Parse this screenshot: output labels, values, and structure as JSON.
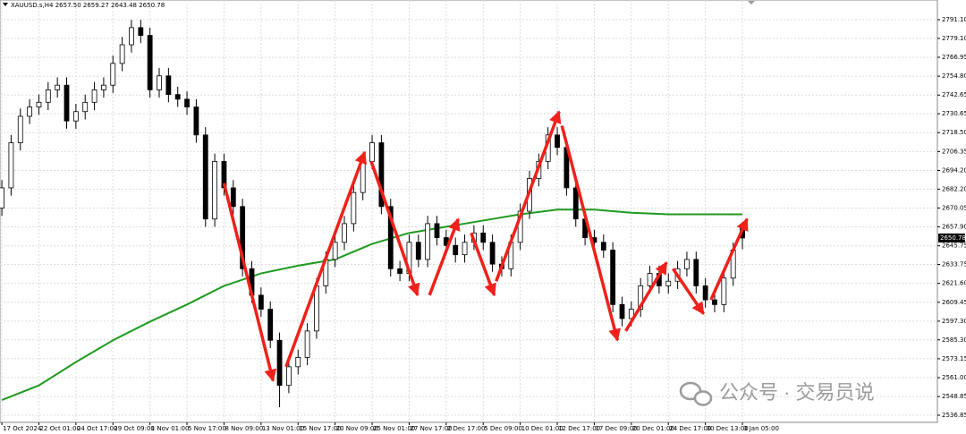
{
  "chart_data": {
    "type": "candlestick",
    "header": "XAUUSD.s,H4 2657.50 2659.27 2643.48 2650.78",
    "watermark": "公众号 · 交易员说",
    "candles": [
      [
        2670,
        2688,
        2665,
        2683
      ],
      [
        2683,
        2717,
        2678,
        2712
      ],
      [
        2712,
        2734,
        2707,
        2729
      ],
      [
        2729,
        2740,
        2724,
        2735
      ],
      [
        2735,
        2743,
        2730,
        2738
      ],
      [
        2738,
        2751,
        2733,
        2746
      ],
      [
        2746,
        2754,
        2741,
        2749
      ],
      [
        2749,
        2754,
        2721,
        2726
      ],
      [
        2726,
        2737,
        2721,
        2732
      ],
      [
        2732,
        2743,
        2727,
        2738
      ],
      [
        2738,
        2751,
        2733,
        2746
      ],
      [
        2746,
        2754,
        2741,
        2749
      ],
      [
        2749,
        2768,
        2744,
        2763
      ],
      [
        2763,
        2780,
        2758,
        2775
      ],
      [
        2775,
        2791,
        2770,
        2786
      ],
      [
        2786,
        2791,
        2776,
        2781
      ],
      [
        2781,
        2786,
        2741,
        2746
      ],
      [
        2746,
        2760,
        2741,
        2755
      ],
      [
        2755,
        2760,
        2738,
        2743
      ],
      [
        2743,
        2748,
        2735,
        2740
      ],
      [
        2740,
        2745,
        2730,
        2735
      ],
      [
        2735,
        2740,
        2712,
        2717
      ],
      [
        2717,
        2722,
        2658,
        2663
      ],
      [
        2663,
        2705,
        2658,
        2700
      ],
      [
        2700,
        2705,
        2678,
        2683
      ],
      [
        2683,
        2688,
        2666,
        2671
      ],
      [
        2671,
        2676,
        2626,
        2631
      ],
      [
        2631,
        2636,
        2609,
        2614
      ],
      [
        2614,
        2619,
        2600,
        2605
      ],
      [
        2605,
        2610,
        2580,
        2585
      ],
      [
        2585,
        2590,
        2542,
        2556
      ],
      [
        2556,
        2573,
        2551,
        2568
      ],
      [
        2568,
        2579,
        2563,
        2574
      ],
      [
        2574,
        2596,
        2569,
        2591
      ],
      [
        2591,
        2625,
        2586,
        2620
      ],
      [
        2620,
        2642,
        2615,
        2637
      ],
      [
        2637,
        2653,
        2632,
        2648
      ],
      [
        2648,
        2665,
        2643,
        2660
      ],
      [
        2660,
        2685,
        2655,
        2680
      ],
      [
        2680,
        2705,
        2675,
        2700
      ],
      [
        2700,
        2717,
        2695,
        2712
      ],
      [
        2712,
        2717,
        2666,
        2671
      ],
      [
        2671,
        2676,
        2626,
        2631
      ],
      [
        2631,
        2636,
        2623,
        2628
      ],
      [
        2628,
        2653,
        2623,
        2648
      ],
      [
        2648,
        2653,
        2632,
        2637
      ],
      [
        2637,
        2665,
        2632,
        2660
      ],
      [
        2660,
        2665,
        2646,
        2651
      ],
      [
        2651,
        2656,
        2641,
        2646
      ],
      [
        2646,
        2651,
        2635,
        2640
      ],
      [
        2640,
        2653,
        2635,
        2648
      ],
      [
        2648,
        2659,
        2643,
        2654
      ],
      [
        2654,
        2659,
        2643,
        2648
      ],
      [
        2648,
        2653,
        2629,
        2634
      ],
      [
        2634,
        2639,
        2626,
        2631
      ],
      [
        2631,
        2653,
        2626,
        2648
      ],
      [
        2648,
        2673,
        2643,
        2668
      ],
      [
        2668,
        2694,
        2663,
        2689
      ],
      [
        2689,
        2705,
        2684,
        2700
      ],
      [
        2700,
        2722,
        2695,
        2717
      ],
      [
        2717,
        2722,
        2704,
        2709
      ],
      [
        2709,
        2714,
        2678,
        2683
      ],
      [
        2683,
        2688,
        2658,
        2663
      ],
      [
        2663,
        2668,
        2646,
        2651
      ],
      [
        2651,
        2656,
        2643,
        2648
      ],
      [
        2648,
        2653,
        2638,
        2643
      ],
      [
        2643,
        2648,
        2603,
        2608
      ],
      [
        2608,
        2613,
        2594,
        2599
      ],
      [
        2599,
        2610,
        2594,
        2605
      ],
      [
        2605,
        2625,
        2600,
        2620
      ],
      [
        2620,
        2633,
        2615,
        2628
      ],
      [
        2628,
        2633,
        2615,
        2620
      ],
      [
        2620,
        2628,
        2615,
        2623
      ],
      [
        2623,
        2636,
        2618,
        2631
      ],
      [
        2631,
        2642,
        2626,
        2637
      ],
      [
        2637,
        2642,
        2615,
        2620
      ],
      [
        2620,
        2625,
        2606,
        2611
      ],
      [
        2611,
        2616,
        2603,
        2608
      ],
      [
        2608,
        2630,
        2603,
        2625
      ],
      [
        2625,
        2648,
        2620,
        2643
      ],
      [
        2657.5,
        2659.27,
        2643.48,
        2650.78
      ]
    ],
    "candle_colors": {
      "up": "#ffffff",
      "down": "#000000",
      "outline": "#000000"
    },
    "moving_average": {
      "color": "#1f9a1f",
      "x": [
        0,
        4,
        8,
        12,
        16,
        20,
        24,
        28,
        32,
        36,
        40,
        44,
        48,
        52,
        56,
        60,
        64,
        68,
        72,
        76,
        80
      ],
      "values": [
        2546.6,
        2556,
        2571,
        2585,
        2597,
        2608,
        2620,
        2628,
        2633,
        2637,
        2647,
        2654,
        2658,
        2662,
        2666,
        2669,
        2669,
        2667,
        2666,
        2666,
        2666
      ]
    },
    "arrows": {
      "color": "#f0201a",
      "items": [
        {
          "x": [
            24,
            29.3
          ],
          "y": [
            2686,
            2559
          ]
        },
        {
          "x": [
            30.7,
            39.2
          ],
          "y": [
            2568,
            2706
          ]
        },
        {
          "x": [
            39.9,
            44.9
          ],
          "y": [
            2700,
            2614
          ]
        },
        {
          "x": [
            46.2,
            49.3
          ],
          "y": [
            2614,
            2663
          ]
        },
        {
          "x": [
            50.7,
            53.2
          ],
          "y": [
            2654,
            2614
          ]
        },
        {
          "x": [
            53.4,
            60.2
          ],
          "y": [
            2623,
            2732
          ]
        },
        {
          "x": [
            60.5,
            66.5
          ],
          "y": [
            2723,
            2585
          ]
        },
        {
          "x": [
            67.4,
            71.8
          ],
          "y": [
            2591,
            2635
          ]
        },
        {
          "x": [
            72.5,
            75.8
          ],
          "y": [
            2631,
            2602
          ]
        },
        {
          "x": [
            76.6,
            80.5
          ],
          "y": [
            2611,
            2663
          ]
        }
      ]
    },
    "xlim": [
      -0.2,
      101.06
    ],
    "ylim": [
      2532.25,
      2803.76
    ],
    "xticks": [
      {
        "value": 0,
        "label": "17 Oct 2024"
      },
      {
        "value": 4,
        "label": "22 Oct 01:00"
      },
      {
        "value": 8,
        "label": "24 Oct 17:00"
      },
      {
        "value": 12,
        "label": "29 Oct 09:00"
      },
      {
        "value": 16,
        "label": "1 Nov 01:00"
      },
      {
        "value": 20,
        "label": "5 Nov 17:00"
      },
      {
        "value": 24,
        "label": "8 Nov 09:00"
      },
      {
        "value": 28,
        "label": "13 Nov 01:00"
      },
      {
        "value": 32,
        "label": "15 Nov 17:00"
      },
      {
        "value": 36,
        "label": "20 Nov 09:00"
      },
      {
        "value": 40,
        "label": "25 Nov 01:00"
      },
      {
        "value": 44,
        "label": "27 Nov 17:00"
      },
      {
        "value": 48,
        "label": "2 Dec 17:00"
      },
      {
        "value": 52,
        "label": "5 Dec 09:00"
      },
      {
        "value": 56,
        "label": "10 Dec 01:00"
      },
      {
        "value": 60,
        "label": "12 Dec 17:00"
      },
      {
        "value": 64,
        "label": "17 Dec 09:00"
      },
      {
        "value": 68,
        "label": "20 Dec 01:00"
      },
      {
        "value": 72,
        "label": "24 Dec 17:00"
      },
      {
        "value": 76,
        "label": "30 Dec 13:00"
      },
      {
        "value": 80,
        "label": "3 Jan 05:00"
      }
    ],
    "yticks": [
      {
        "value": 2791.1,
        "label": "2791.10"
      },
      {
        "value": 2779.1,
        "label": "2779.10"
      },
      2766.95,
      {
        "value": 2754.8,
        "label": "2754.80"
      },
      2742.65,
      2730.65,
      {
        "value": 2718.5,
        "label": "2718.50"
      },
      2706.35,
      {
        "value": 2694.2,
        "label": "2694.20"
      },
      {
        "value": 2682.2,
        "label": "2682.20"
      },
      2670.05,
      {
        "value": 2657.9,
        "label": "2657.90"
      },
      2645.75,
      2633.75,
      {
        "value": 2621.6,
        "label": "2621.60"
      },
      2609.45,
      {
        "value": 2597.3,
        "label": "2597.30"
      },
      {
        "value": 2585.3,
        "label": "2585.30"
      },
      2573.15,
      {
        "value": 2561,
        "label": "2561.00"
      },
      2548.85,
      2536.85
    ],
    "grid": true
  }
}
